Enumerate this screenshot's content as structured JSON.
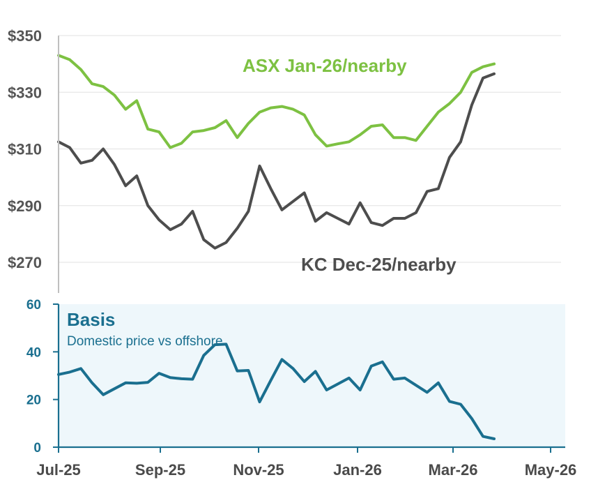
{
  "chart_data": [
    {
      "type": "line",
      "ylim": [
        270,
        350
      ],
      "yticks": [
        270,
        290,
        310,
        330,
        350
      ],
      "ytick_labels": [
        "$270",
        "$290",
        "$310",
        "$330",
        "$350"
      ],
      "grid": true,
      "series": [
        {
          "name": "ASX Jan-26/nearby",
          "color": "#7dc142",
          "values": [
            343,
            341.5,
            338,
            333,
            332,
            329,
            324,
            327,
            317,
            316,
            310.5,
            312,
            316,
            316.5,
            317.5,
            320,
            314,
            319,
            323,
            324.5,
            325,
            324,
            322,
            315,
            311,
            311.8,
            312.5,
            315,
            318,
            318.5,
            314,
            314,
            313,
            318,
            323,
            326,
            330,
            337,
            339,
            340
          ]
        },
        {
          "name": "KC Dec-25/nearby",
          "color": "#4d4d4d",
          "values": [
            312.5,
            310.5,
            305,
            306,
            310,
            304.5,
            297,
            300.5,
            290,
            285,
            281.5,
            283.5,
            288,
            278,
            275,
            277,
            282,
            288,
            304,
            296,
            288.5,
            291.5,
            294.5,
            284.5,
            287.5,
            285.5,
            283.5,
            291,
            284,
            283,
            285.5,
            285.5,
            287.5,
            295,
            296,
            307,
            312.5,
            325.5,
            335,
            336.5
          ]
        }
      ]
    },
    {
      "type": "line",
      "title": "Basis",
      "subtitle": "Domestic price vs offshore",
      "ylim": [
        0,
        60
      ],
      "yticks": [
        0,
        20,
        40,
        60
      ],
      "ytick_labels": [
        "0",
        "20",
        "40",
        "60"
      ],
      "x_tick_labels": [
        "Jul-25",
        "Sep-25",
        "Nov-25",
        "Jan-26",
        "Mar-26",
        "May-26"
      ],
      "series": [
        {
          "color": "#1a6f8f",
          "values": [
            30.5,
            31.5,
            33,
            27,
            22,
            24.5,
            27,
            26.8,
            27.2,
            31,
            29.2,
            28.7,
            28.5,
            38.5,
            43,
            43.2,
            32,
            32.2,
            19,
            28,
            36.8,
            33,
            27.5,
            31.8,
            24,
            26.5,
            29,
            24,
            34,
            35.8,
            28.5,
            29,
            26,
            23,
            27,
            19.2,
            18,
            12,
            4.5,
            3.5
          ]
        }
      ]
    }
  ]
}
